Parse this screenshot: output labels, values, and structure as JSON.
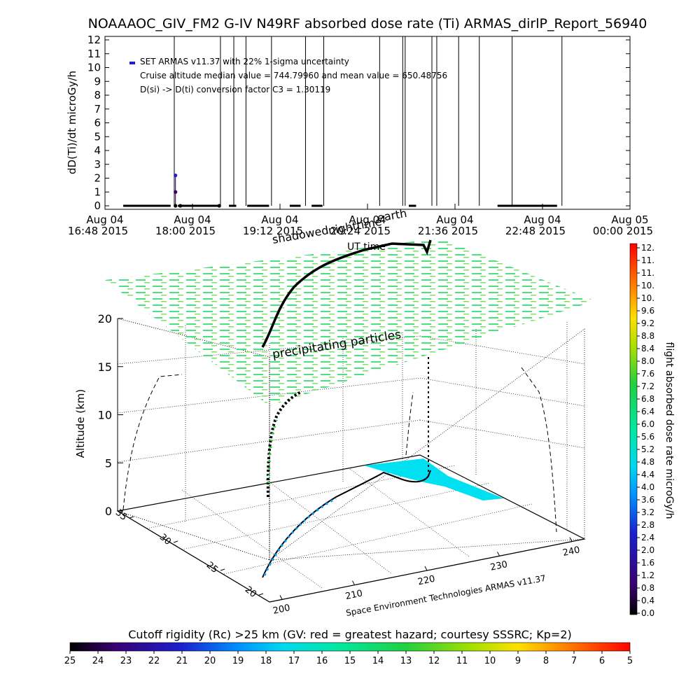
{
  "header": {
    "title": "NOAAAOC_GIV_FM2 G-IV    N49RF  absorbed dose rate (Ti) ARMAS_dirlP_Report_56940"
  },
  "top_plot": {
    "ylabel": "dD(Ti)/dt microGy/h",
    "annotations": [
      "SET ARMAS v11.37 with 22% 1-sigma uncertainty",
      "Cruise altitude median value = 744.79960 and mean value = 650.48756",
      "D(si) -> D(ti) conversion factor C3 = 1.30119"
    ],
    "legend_marker_color": "#1f1fd0"
  },
  "globe": {
    "labels": {
      "shadow": "shadowed",
      "nighttime": "nighttime",
      "earth": "earth",
      "ut": "UT time",
      "precip": "precipitating particles"
    },
    "zlabel": "Altitude (km)",
    "z_ticks": [
      "0",
      "5",
      "10",
      "15",
      "20"
    ],
    "y_ticks": [
      "20",
      "25",
      "30",
      "35"
    ],
    "x_ticks": [
      "200",
      "210",
      "220",
      "230",
      "240"
    ],
    "footer": "Space Environment Technologies ARMAS v11.37"
  },
  "colorbar_right": {
    "label": "flight absorbed dose rate microGy/h",
    "ticks": [
      "12.",
      "11.",
      "11.",
      "10.",
      "10.",
      "9.6",
      "9.2",
      "8.8",
      "8.4",
      "8.0",
      "7.6",
      "7.2",
      "6.8",
      "6.4",
      "6.0",
      "5.6",
      "5.2",
      "4.8",
      "4.4",
      "4.0",
      "3.6",
      "3.2",
      "2.8",
      "2.4",
      "2.0",
      "1.6",
      "1.2",
      "0.8",
      "0.4",
      "0.0"
    ]
  },
  "colorbar_bottom": {
    "label": "Cutoff rigidity (Rc) >25 km (GV: red = greatest hazard; courtesy SSSRC; Kp=2)",
    "ticks": [
      "25",
      "24",
      "23",
      "22",
      "21",
      "20",
      "19",
      "18",
      "17",
      "16",
      "15",
      "14",
      "13",
      "12",
      "11",
      "10",
      "9",
      "8",
      "7",
      "6",
      "5"
    ]
  },
  "chart_data": [
    {
      "type": "scatter",
      "title": "NOAAAOC_GIV_FM2 G-IV    N49RF  absorbed dose rate (Ti) ARMAS_dirlP_Report_56940",
      "ylabel": "dD(Ti)/dt microGy/h",
      "ylim": [
        0,
        12
      ],
      "y_ticks": [
        "0",
        "1",
        "2",
        "3",
        "4",
        "5",
        "6",
        "7",
        "8",
        "9",
        "10",
        "11",
        "12"
      ],
      "x_ticks": [
        [
          "Aug 04",
          "16:48 2015"
        ],
        [
          "Aug 04",
          "18:00 2015"
        ],
        [
          "Aug 04",
          "19:12 2015"
        ],
        [
          "Aug 04",
          "20:24 2015"
        ],
        [
          "Aug 04",
          "21:36 2015"
        ],
        [
          "Aug 04",
          "22:48 2015"
        ],
        [
          "Aug 05",
          "00:00 2015"
        ]
      ],
      "xlim_minutes": [
        0,
        432
      ],
      "series": [
        {
          "points": [
            {
              "t": 58,
              "y": 2.2
            },
            {
              "t": 58,
              "y": 1.0
            },
            {
              "t": 58,
              "y": 0.0
            },
            {
              "t": 62,
              "y": 0.0
            },
            {
              "t": 94,
              "y": 0.0
            }
          ],
          "segments_zero": [
            [
              15,
              54
            ],
            [
              60,
              94
            ],
            [
              102,
              108
            ],
            [
              117,
              135
            ],
            [
              152,
              161
            ],
            [
              170,
              179
            ],
            [
              250,
              256
            ],
            [
              323,
              372
            ]
          ]
        }
      ],
      "vertical_lines_minutes": [
        57,
        95,
        106,
        116,
        137,
        165,
        180,
        226,
        245,
        247,
        269,
        273,
        291,
        308,
        335,
        376
      ]
    },
    {
      "type": "line",
      "title": "",
      "xlabel": "",
      "ylabel": "Altitude (km)",
      "x_ticks": [
        "200",
        "210",
        "220",
        "230",
        "240"
      ],
      "y_ticks": [
        "20",
        "25",
        "30",
        "35"
      ],
      "z_ticks": [
        "0",
        "5",
        "10",
        "15",
        "20"
      ],
      "zlim": [
        0,
        20
      ]
    }
  ],
  "colors": {
    "dose_scale": [
      "#000000",
      "#2a0060",
      "#3e00a0",
      "#1a40ff",
      "#00a0ff",
      "#00e8e0",
      "#00e8a0",
      "#20d050",
      "#a0e000",
      "#ffd000",
      "#ff7000",
      "#ff0000"
    ],
    "precip_grid": "#40e080",
    "earth_fill": "#00e0f0"
  }
}
